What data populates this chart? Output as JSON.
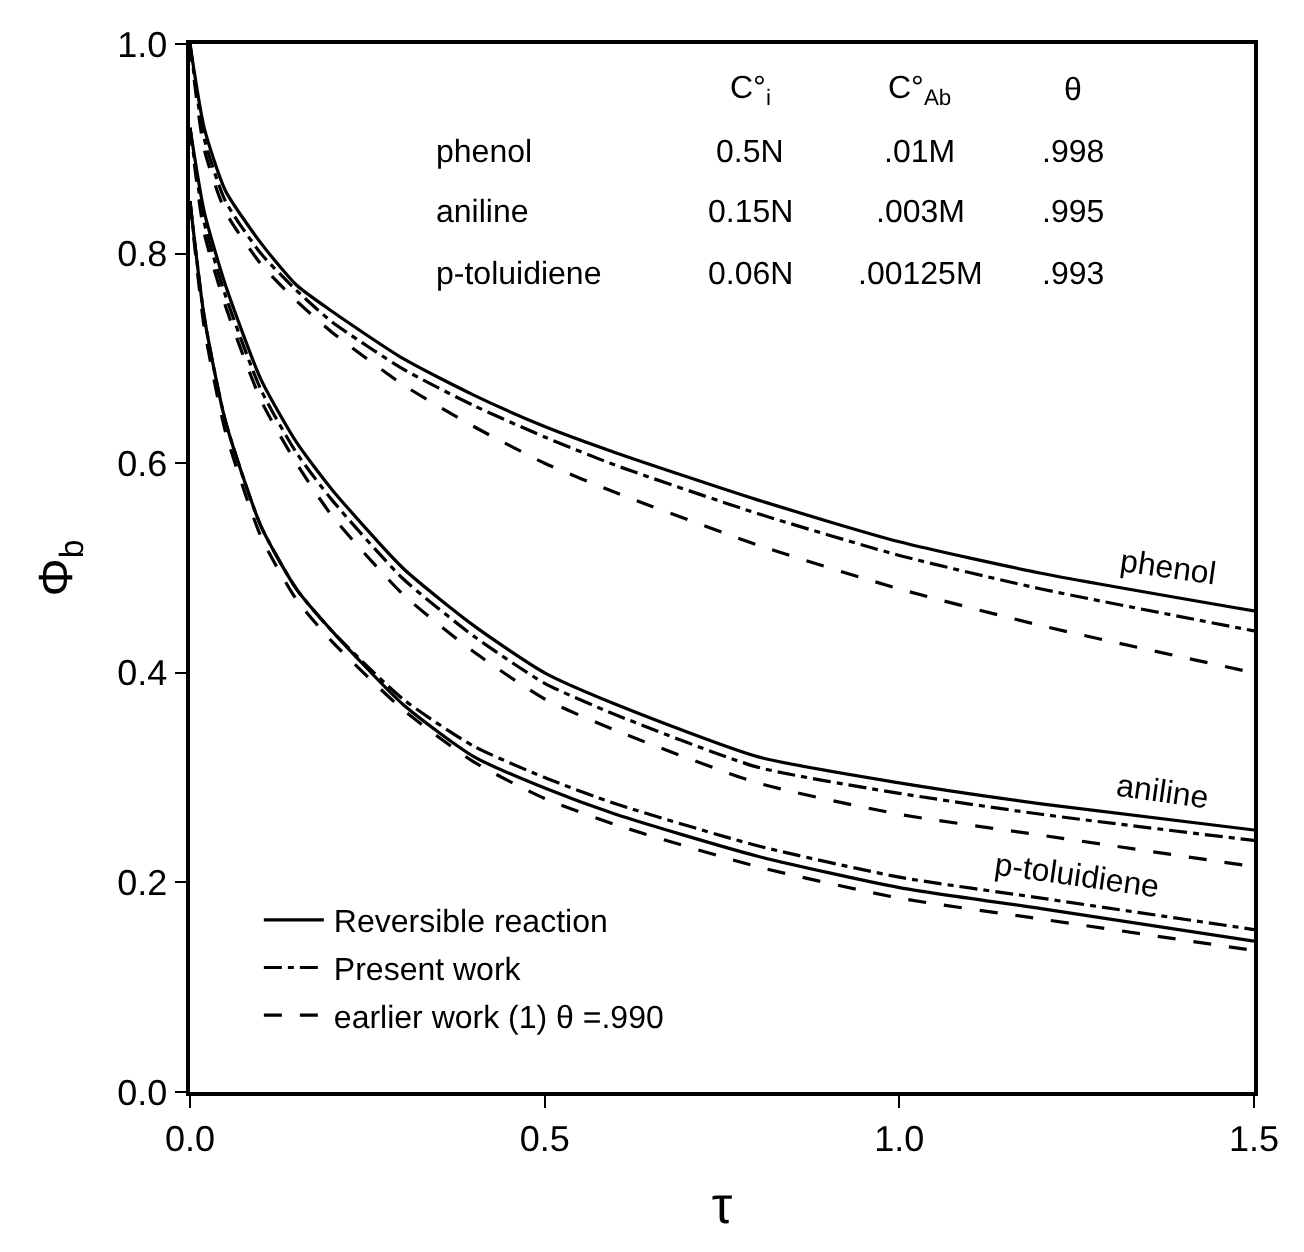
{
  "chart_data": {
    "type": "line",
    "xlabel": "τ",
    "ylabel": "Φ$_{b}$",
    "x": [
      0,
      0.02,
      0.05,
      0.1,
      0.15,
      0.2,
      0.3,
      0.4,
      0.5,
      0.6,
      0.8,
      1.0,
      1.2,
      1.5
    ],
    "xlim": [
      0,
      1.5
    ],
    "xticks": [
      {
        "value": 0,
        "label": "0.0"
      },
      0.5,
      {
        "value": 1,
        "label": "1.0"
      },
      1.5
    ],
    "ylim": [
      0,
      1.0
    ],
    "yticks": [
      {
        "value": 0,
        "label": "0.0"
      },
      0.2,
      0.4,
      0.6,
      0.8,
      {
        "value": 1,
        "label": "1.0"
      }
    ],
    "legend": "bottom left",
    "marker": "none",
    "series": [
      {
        "name": "Reversible reaction",
        "color": "#000000",
        "line_style": "solid",
        "values": [
          1.0,
          0.92,
          0.86,
          0.81,
          0.77,
          0.745,
          0.7,
          0.665,
          0.635,
          0.61,
          0.565,
          0.525,
          0.495,
          0.459
        ]
      },
      {
        "name": "Present work",
        "color": "#000000",
        "line_style": "dashdot",
        "values": [
          1.0,
          0.91,
          0.85,
          0.8,
          0.765,
          0.735,
          0.69,
          0.655,
          0.625,
          0.598,
          0.552,
          0.512,
          0.48,
          0.44
        ]
      },
      {
        "name": "earlier work (1) θ =.990",
        "color": "#000000",
        "line_style": "dashed",
        "values": [
          1.0,
          0.9,
          0.84,
          0.79,
          0.755,
          0.725,
          0.675,
          0.635,
          0.6,
          0.572,
          0.522,
          0.48,
          0.445,
          0.4
        ]
      },
      {
        "color": "#000000",
        "line_style": "solid",
        "values": [
          0.92,
          0.84,
          0.77,
          0.68,
          0.62,
          0.575,
          0.5,
          0.445,
          0.4,
          0.37,
          0.32,
          0.295,
          0.275,
          0.25
        ]
      },
      {
        "color": "#000000",
        "line_style": "dashdot",
        "values": [
          0.92,
          0.83,
          0.76,
          0.67,
          0.61,
          0.565,
          0.49,
          0.435,
          0.39,
          0.36,
          0.31,
          0.285,
          0.265,
          0.24
        ]
      },
      {
        "color": "#000000",
        "line_style": "dashed",
        "values": [
          0.92,
          0.82,
          0.75,
          0.66,
          0.6,
          0.55,
          0.475,
          0.42,
          0.375,
          0.345,
          0.295,
          0.265,
          0.245,
          0.215
        ]
      },
      {
        "color": "#000000",
        "line_style": "solid",
        "values": [
          0.85,
          0.74,
          0.64,
          0.54,
          0.48,
          0.44,
          0.37,
          0.32,
          0.29,
          0.265,
          0.225,
          0.195,
          0.175,
          0.144
        ]
      },
      {
        "color": "#000000",
        "line_style": "dashdot",
        "values": [
          0.85,
          0.74,
          0.64,
          0.54,
          0.48,
          0.44,
          0.375,
          0.33,
          0.3,
          0.275,
          0.235,
          0.205,
          0.185,
          0.155
        ]
      },
      {
        "color": "#000000",
        "line_style": "dashed",
        "values": [
          0.85,
          0.73,
          0.63,
          0.53,
          0.47,
          0.43,
          0.365,
          0.315,
          0.28,
          0.255,
          0.215,
          0.185,
          0.165,
          0.135
        ]
      }
    ],
    "annotations": [
      "C°$_{i}$",
      "C°$_{Ab}$",
      "θ",
      "phenol",
      "0.5N",
      ".01M",
      ".998",
      "aniline",
      "0.15N",
      ".003M",
      ".995",
      "p-toluidiene",
      "0.06N",
      ".00125M",
      ".993",
      "phenol",
      "aniline",
      "p-toluidiene"
    ]
  }
}
